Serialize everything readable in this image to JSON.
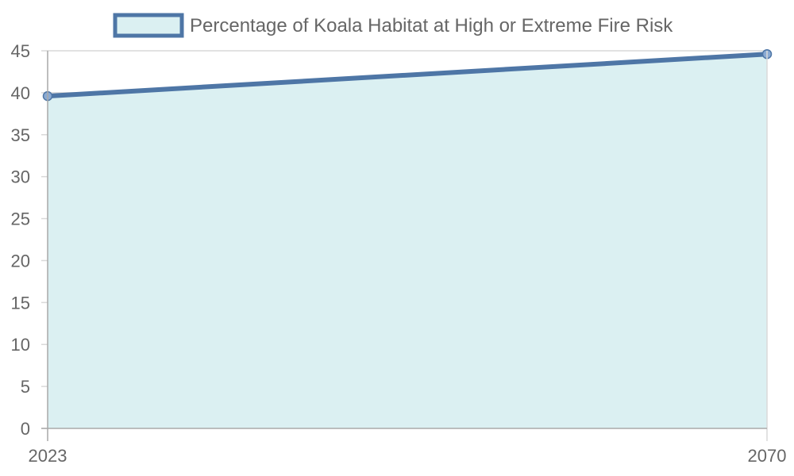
{
  "chart_data": {
    "type": "area",
    "title": "",
    "xlabel": "",
    "ylabel": "",
    "x": [
      "2023",
      "2070"
    ],
    "series": [
      {
        "name": "Percentage of Koala Habitat at High or Extreme Fire Risk",
        "values": [
          39.6,
          44.6
        ],
        "line_color": "#4e76a6",
        "fill_color": "#dbf0f2"
      }
    ],
    "ylim": [
      0,
      45
    ],
    "y_ticks": [
      "0",
      "5",
      "10",
      "15",
      "20",
      "25",
      "30",
      "35",
      "40",
      "45"
    ],
    "grid": true,
    "legend_position": "top-center"
  }
}
